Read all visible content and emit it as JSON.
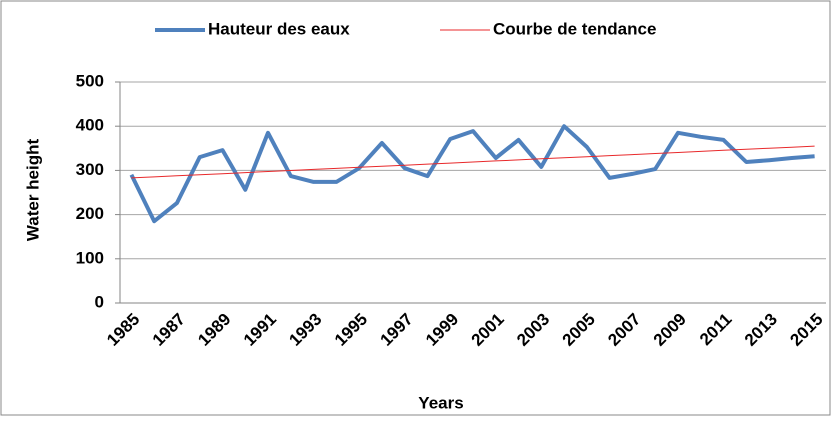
{
  "chart_data": {
    "type": "line",
    "x_label": "Years",
    "y_label": "Water height",
    "categories": [
      "1985",
      null,
      "1987",
      null,
      "1989",
      null,
      "1991",
      null,
      "1993",
      null,
      "1995",
      null,
      "1997",
      null,
      "1999",
      null,
      "2001",
      null,
      "2003",
      null,
      "2005",
      null,
      "2007",
      null,
      "2009",
      null,
      "2011",
      null,
      "2013",
      null,
      "2015"
    ],
    "series": [
      {
        "name": "Hauteur des eaux",
        "color": "#4f81bd",
        "width": 4,
        "values": [
          290,
          185,
          226,
          330,
          346,
          256,
          385,
          287,
          274,
          274,
          305,
          362,
          305,
          287,
          371,
          389,
          328,
          369,
          308,
          400,
          353,
          283,
          292,
          303,
          385,
          376,
          369,
          319,
          323,
          328,
          332
        ]
      },
      {
        "name": "Courbe de tendance",
        "color": "#e8292b",
        "width": 1,
        "values": [
          283,
          285.4,
          287.8,
          290.2,
          292.6,
          295,
          297.4,
          299.8,
          302.2,
          304.6,
          307,
          309.4,
          311.8,
          314.2,
          316.6,
          319,
          321.4,
          323.8,
          326.2,
          328.6,
          331,
          333.4,
          335.8,
          338.2,
          340.6,
          343,
          345.4,
          347.8,
          350.2,
          352.6,
          355
        ]
      }
    ],
    "ylim": [
      0,
      500
    ],
    "yticks": [
      0,
      100,
      200,
      300,
      400,
      500
    ],
    "grid": true,
    "legend": "top"
  }
}
